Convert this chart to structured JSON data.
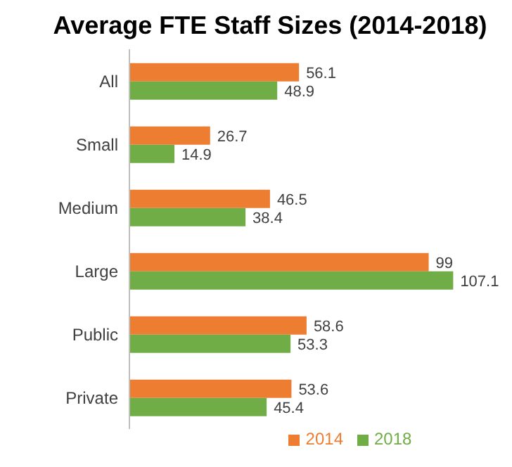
{
  "chart_data": {
    "type": "bar",
    "title": "Average FTE Staff Sizes (2014-2018)",
    "orientation": "horizontal",
    "categories": [
      "All",
      "Small",
      "Medium",
      "Large",
      "Public",
      "Private"
    ],
    "series": [
      {
        "name": "2014",
        "color": "#ed7d31",
        "values": [
          56.1,
          26.7,
          46.5,
          99,
          58.6,
          53.6
        ]
      },
      {
        "name": "2018",
        "color": "#70ad47",
        "values": [
          48.9,
          14.9,
          38.4,
          107.1,
          53.3,
          45.4
        ]
      }
    ],
    "data_labels": true,
    "legend": "bottom",
    "grid": false
  }
}
